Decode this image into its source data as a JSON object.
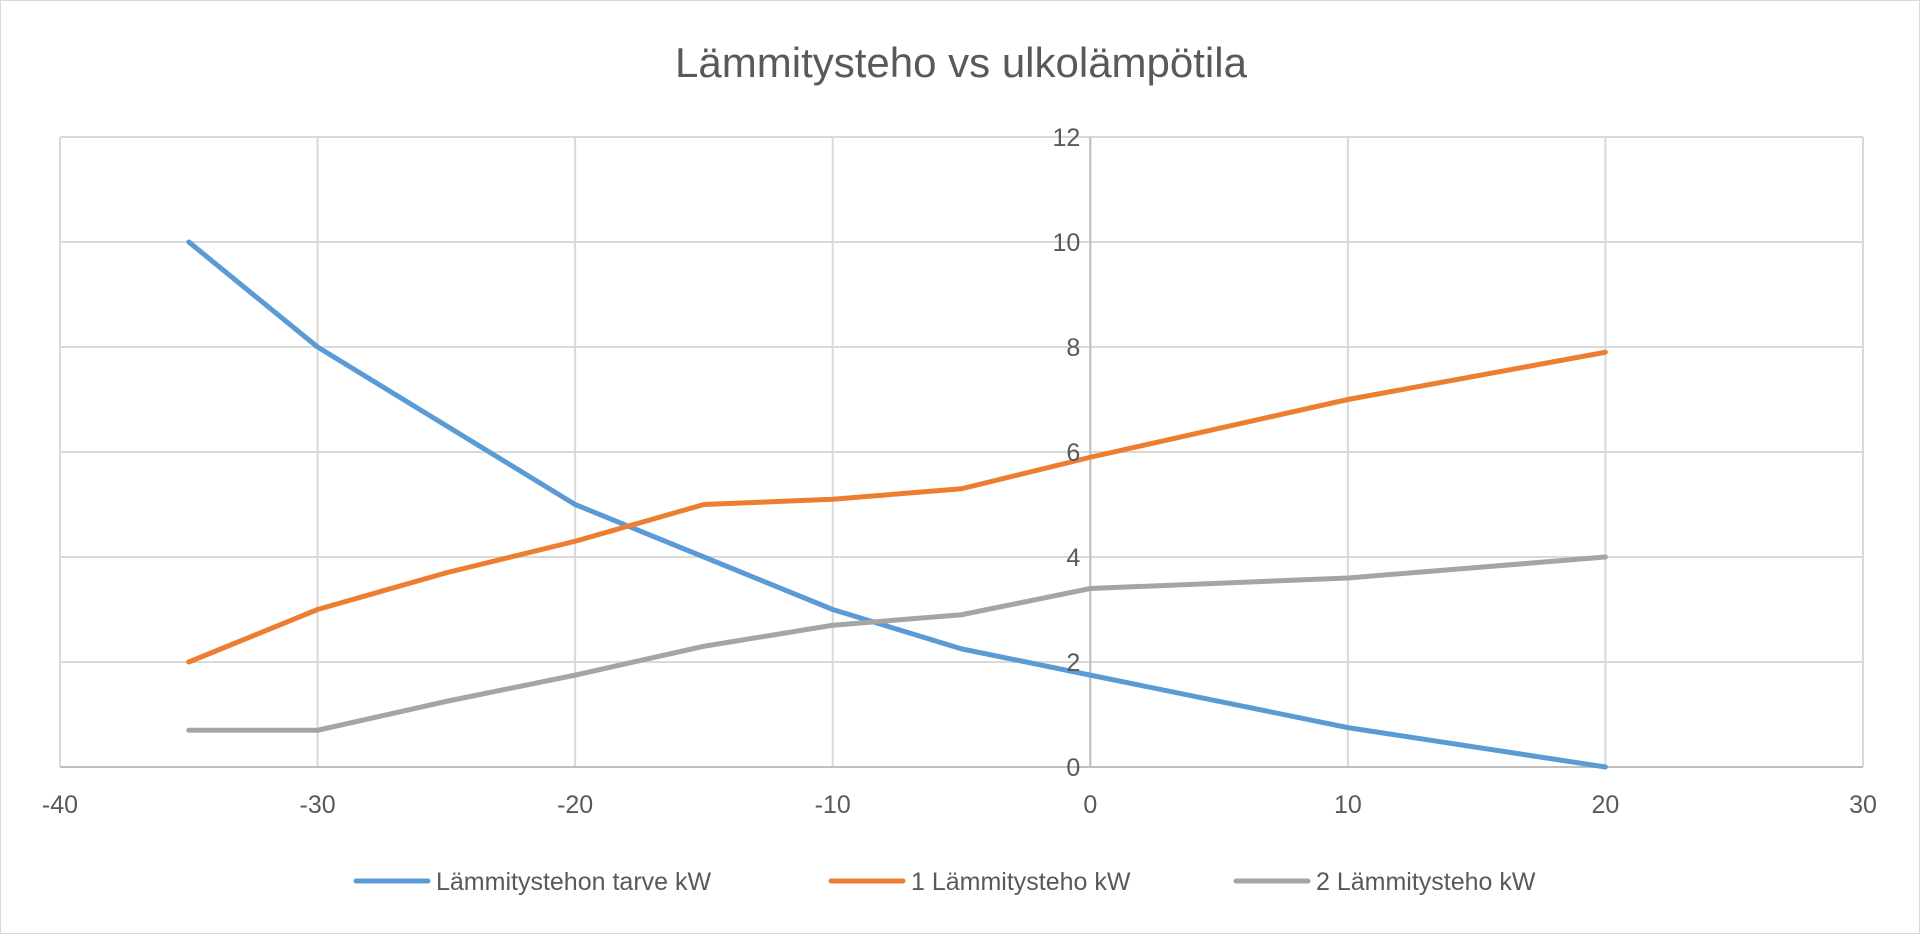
{
  "chart_data": {
    "type": "scatter",
    "title": "Lämmitysteho vs ulkolämpötila",
    "xlabel": "",
    "ylabel": "",
    "xlim": [
      -40,
      30
    ],
    "ylim": [
      0,
      12
    ],
    "x_ticks": [
      -40,
      -30,
      -20,
      -10,
      0,
      10,
      20,
      30
    ],
    "x_tick_labels": [
      "-40",
      "-30",
      "-20",
      "-10",
      "0",
      "10",
      "20",
      "30"
    ],
    "y_ticks": [
      0,
      2,
      4,
      6,
      8,
      10,
      12
    ],
    "y_tick_labels": [
      "0",
      "2",
      "4",
      "6",
      "8",
      "10",
      "12"
    ],
    "grid": true,
    "legend_position": "bottom",
    "x": [
      -35,
      -30,
      -25,
      -20,
      -15,
      -10,
      -5,
      0,
      10,
      20
    ],
    "series": [
      {
        "name": "Lämmitystehon tarve kW",
        "color": "#5b9bd5",
        "values": [
          10,
          8,
          6.5,
          5,
          4,
          3,
          2.25,
          1.75,
          0.75,
          0
        ]
      },
      {
        "name": "1 Lämmitysteho kW",
        "color": "#ed7d31",
        "values": [
          2,
          3,
          3.7,
          4.3,
          5,
          5.1,
          5.3,
          5.9,
          7,
          7.9
        ]
      },
      {
        "name": "2 Lämmitysteho kW",
        "color": "#a5a5a5",
        "values": [
          0.7,
          0.7,
          1.25,
          1.75,
          2.3,
          2.7,
          2.9,
          3.4,
          3.6,
          4
        ]
      }
    ]
  }
}
